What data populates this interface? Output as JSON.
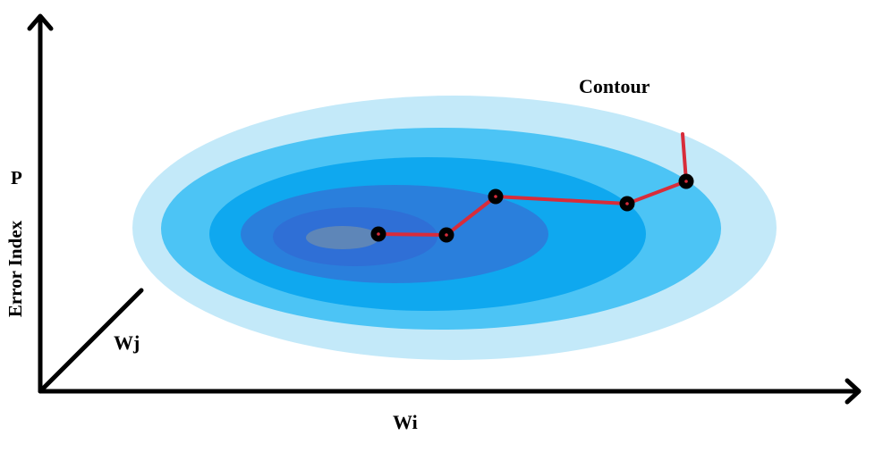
{
  "labels": {
    "contour": "Contour",
    "p": "P",
    "error_index": "Error Index",
    "wj": "Wj",
    "wi": "Wi"
  },
  "colors": {
    "contour_levels": [
      "#c3e9f9",
      "#4cc4f5",
      "#0fa8ef",
      "#2a7fdc",
      "#2f6fd6",
      "#5e86b8"
    ],
    "path": "#d82c3a",
    "points": "#000000",
    "axes": "#000000"
  }
}
